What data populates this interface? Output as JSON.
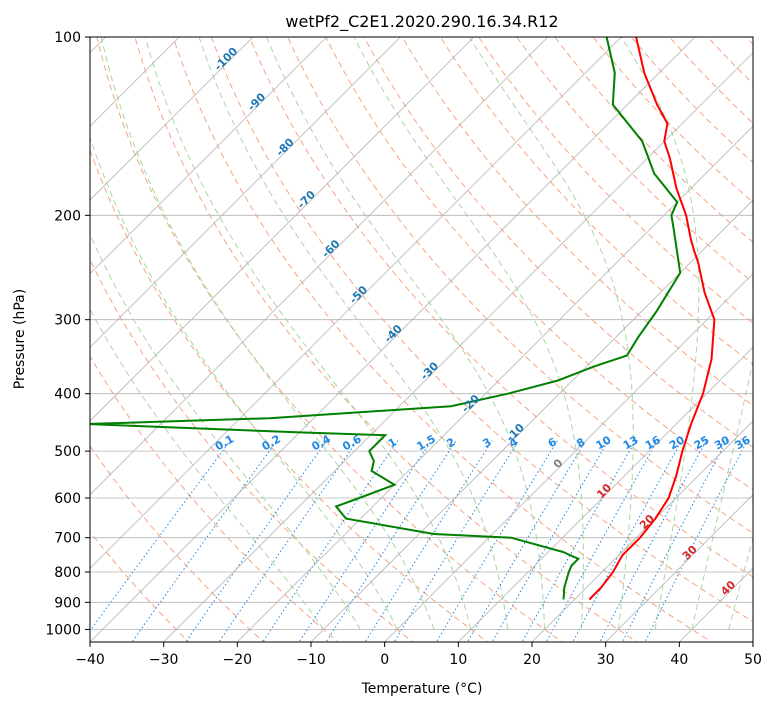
{
  "chart_data": {
    "type": "line",
    "subtype": "skew-t log-p diagram",
    "title": "wetPf2_C2E1.2020.290.16.34.R12",
    "xlabel": "Temperature (°C)",
    "ylabel": "Pressure (hPa)",
    "xlim": [
      -40,
      50
    ],
    "ylim": [
      1050,
      100
    ],
    "y_scale": "log",
    "x_ticks": [
      "−40",
      "−30",
      "−20",
      "−10",
      "0",
      "10",
      "20",
      "30",
      "40",
      "50"
    ],
    "y_ticks": [
      "100",
      "200",
      "300",
      "400",
      "500",
      "600",
      "700",
      "800",
      "900",
      "1000"
    ],
    "grid": true,
    "series": [
      {
        "role": "temperature",
        "color": "#ff0000",
        "points": [
          [
            890,
            22
          ],
          [
            850,
            22
          ],
          [
            800,
            21.5
          ],
          [
            750,
            20.5
          ],
          [
            700,
            20.5
          ],
          [
            650,
            20
          ],
          [
            600,
            19
          ],
          [
            550,
            17
          ],
          [
            500,
            14.5
          ],
          [
            450,
            12
          ],
          [
            400,
            9.5
          ],
          [
            350,
            6
          ],
          [
            300,
            1
          ],
          [
            270,
            -4
          ],
          [
            240,
            -9
          ],
          [
            230,
            -11
          ],
          [
            220,
            -13
          ],
          [
            200,
            -17
          ],
          [
            180,
            -22
          ],
          [
            160,
            -27
          ],
          [
            150,
            -30
          ],
          [
            140,
            -32
          ],
          [
            130,
            -36
          ],
          [
            115,
            -42
          ],
          [
            100,
            -48
          ]
        ]
      },
      {
        "role": "dewpoint",
        "color": "#008000",
        "points": [
          [
            890,
            18.5
          ],
          [
            850,
            17
          ],
          [
            800,
            15.5
          ],
          [
            780,
            15
          ],
          [
            760,
            15
          ],
          [
            740,
            12
          ],
          [
            700,
            3
          ],
          [
            690,
            -8
          ],
          [
            650,
            -22
          ],
          [
            620,
            -25
          ],
          [
            600,
            -23
          ],
          [
            570,
            -20
          ],
          [
            540,
            -25
          ],
          [
            520,
            -26
          ],
          [
            500,
            -28
          ],
          [
            470,
            -28
          ],
          [
            465,
            -40
          ],
          [
            450,
            -70
          ],
          [
            440,
            -46
          ],
          [
            420,
            -23
          ],
          [
            400,
            -17
          ],
          [
            380,
            -12
          ],
          [
            360,
            -9
          ],
          [
            345,
            -6
          ],
          [
            320,
            -7
          ],
          [
            290,
            -8
          ],
          [
            250,
            -10
          ],
          [
            210,
            -17
          ],
          [
            200,
            -19
          ],
          [
            190,
            -20
          ],
          [
            170,
            -27
          ],
          [
            150,
            -33
          ],
          [
            130,
            -42
          ],
          [
            115,
            -46
          ],
          [
            100,
            -52
          ]
        ]
      }
    ],
    "isotherm_labels": [
      "-100",
      "-90",
      "-80",
      "-70",
      "-60",
      "-50",
      "-40",
      "-30",
      "-20",
      "-10",
      "0",
      "10",
      "20",
      "30",
      "40"
    ],
    "mixing_ratio_labels": [
      "0.1",
      "0.2",
      "0.4",
      "0.6",
      "1",
      "1.5",
      "2",
      "3",
      "4",
      "6",
      "8",
      "10",
      "13",
      "16",
      "20",
      "25",
      "30",
      "36"
    ],
    "colors": {
      "isotherm": "#b4b4b4",
      "isotherm_label_cold": "#1f77b4",
      "isotherm_label_zero": "#808080",
      "isotherm_label_warm": "#d62728",
      "dry_adiabat": "#f4a582",
      "moist_adiabat": "#a6d8a0",
      "mixing_ratio": "#1e88e5",
      "mixing_ratio_label": "#1e88e5"
    }
  }
}
